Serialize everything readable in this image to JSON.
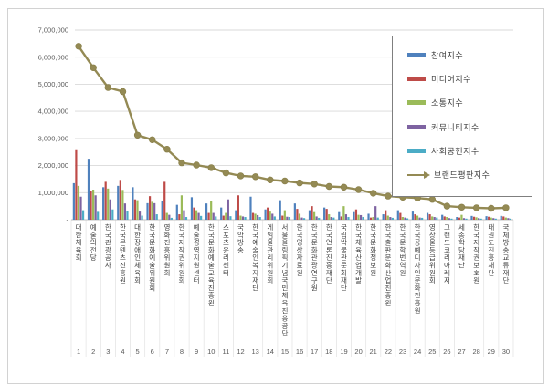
{
  "chart_data": {
    "type": "bar",
    "title": "",
    "subtitle": "",
    "legend_position": "top-right",
    "grid": true,
    "y_axis": {
      "min": 0,
      "max": 7000000,
      "step": 1000000,
      "tick_labels": [
        "-",
        "1,000,000",
        "2,000,000",
        "3,000,000",
        "4,000,000",
        "5,000,000",
        "6,000,000",
        "7,000,000"
      ]
    },
    "categories": [
      "대한체육회",
      "예술의전당",
      "한국관광공사",
      "한국콘텐츠진흥원",
      "대한장애인체육회",
      "한국문화예술위원회",
      "영화진흥위원회",
      "한국저작권위원회",
      "예술경영지원센터",
      "한국문화예술교육진흥원",
      "스포츠윤리센터",
      "국악방송",
      "한국예술인복지재단",
      "게임물관리위원회",
      "서울올림픽기념국민체육진흥공단",
      "한국영상자료원",
      "한국문화관광연구원",
      "한국언론진흥재단",
      "국립박물관문화재단",
      "한국체육산업개발",
      "한국문화정보원",
      "한국출판문화산업진흥원",
      "한국문학번역원",
      "한국공예디자인문화진흥원",
      "영상물등급위원회",
      "그랜드코리아레저",
      "세종학당재단",
      "한국저작권보호원",
      "태권도진흥재단",
      "국제방송교류재단"
    ],
    "ranks": [
      "1",
      "2",
      "3",
      "4",
      "5",
      "6",
      "7",
      "8",
      "9",
      "10",
      "11",
      "12",
      "13",
      "14",
      "15",
      "16",
      "17",
      "18",
      "19",
      "20",
      "21",
      "22",
      "23",
      "24",
      "25",
      "26",
      "27",
      "28",
      "29",
      "30"
    ],
    "series": [
      {
        "key": "participation-index",
        "name": "참여지수",
        "type": "bar",
        "color": "#4F81BD",
        "values": [
          1350000,
          2250000,
          1200000,
          1250000,
          1200000,
          610000,
          700000,
          550000,
          830000,
          600000,
          450000,
          350000,
          850000,
          380000,
          720000,
          600000,
          350000,
          450000,
          280000,
          280000,
          220000,
          200000,
          350000,
          300000,
          250000,
          180000,
          100000,
          140000,
          130000,
          140000
        ]
      },
      {
        "key": "media-index",
        "name": "미디어지수",
        "type": "bar",
        "color": "#BE4B48",
        "values": [
          2600000,
          1060000,
          1400000,
          1470000,
          750000,
          870000,
          1400000,
          200000,
          450000,
          250000,
          150000,
          900000,
          250000,
          450000,
          150000,
          400000,
          500000,
          400000,
          120000,
          380000,
          80000,
          350000,
          250000,
          200000,
          200000,
          120000,
          80000,
          110000,
          110000,
          120000
        ]
      },
      {
        "key": "communication-index",
        "name": "소통지수",
        "type": "bar",
        "color": "#9BBB59",
        "values": [
          1250000,
          1110000,
          1150000,
          1100000,
          720000,
          660000,
          250000,
          900000,
          350000,
          700000,
          250000,
          150000,
          220000,
          300000,
          350000,
          220000,
          280000,
          200000,
          500000,
          180000,
          100000,
          150000,
          100000,
          150000,
          120000,
          100000,
          180000,
          90000,
          80000,
          80000
        ]
      },
      {
        "key": "community-index",
        "name": "커뮤니티지수",
        "type": "bar",
        "color": "#7E63A1",
        "values": [
          850000,
          900000,
          750000,
          600000,
          300000,
          610000,
          180000,
          350000,
          250000,
          250000,
          750000,
          120000,
          170000,
          220000,
          110000,
          80000,
          120000,
          100000,
          200000,
          170000,
          500000,
          100000,
          80000,
          80000,
          100000,
          60000,
          60000,
          60000,
          60000,
          60000
        ]
      },
      {
        "key": "social-contribution-index",
        "name": "사회공헌지수",
        "type": "bar",
        "color": "#4BACC6",
        "values": [
          350000,
          290000,
          380000,
          310000,
          150000,
          200000,
          70000,
          100000,
          140000,
          120000,
          130000,
          100000,
          100000,
          120000,
          100000,
          60000,
          70000,
          80000,
          100000,
          100000,
          80000,
          70000,
          50000,
          70000,
          80000,
          40000,
          40000,
          40000,
          40000,
          40000
        ]
      },
      {
        "key": "brand-reputation-index",
        "name": "브랜드평판지수",
        "type": "line",
        "color": "#948A54",
        "values": [
          6400000,
          5610000,
          4880000,
          4730000,
          3120000,
          2950000,
          2600000,
          2100000,
          2020000,
          1920000,
          1730000,
          1620000,
          1590000,
          1470000,
          1430000,
          1360000,
          1320000,
          1230000,
          1200000,
          1110000,
          980000,
          870000,
          830000,
          800000,
          750000,
          500000,
          460000,
          440000,
          420000,
          440000
        ]
      }
    ]
  }
}
